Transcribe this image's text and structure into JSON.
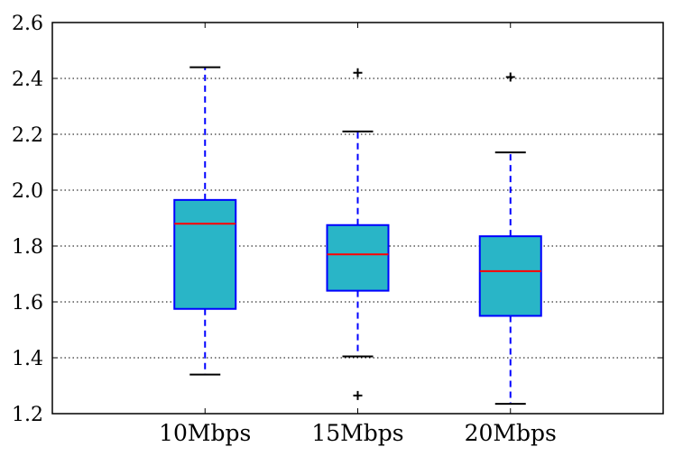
{
  "chart_data": {
    "type": "box",
    "title": "",
    "xlabel": "",
    "ylabel": "",
    "ylim": [
      1.2,
      2.6
    ],
    "grid": "horizontal dotted",
    "y_ticks": [
      "1.2",
      "1.4",
      "1.6",
      "1.8",
      "2.0",
      "2.2",
      "2.4",
      "2.6"
    ],
    "categories": [
      "10Mbps",
      "15Mbps",
      "20Mbps"
    ],
    "boxes": [
      {
        "label": "10Mbps",
        "whisker_low": 1.34,
        "q1": 1.575,
        "median": 1.88,
        "q3": 1.965,
        "whisker_high": 2.44,
        "outliers": []
      },
      {
        "label": "15Mbps",
        "whisker_low": 1.405,
        "q1": 1.64,
        "median": 1.77,
        "q3": 1.875,
        "whisker_high": 2.21,
        "outliers": [
          2.42,
          1.265
        ]
      },
      {
        "label": "20Mbps",
        "whisker_low": 1.235,
        "q1": 1.55,
        "median": 1.71,
        "q3": 1.835,
        "whisker_high": 2.135,
        "outliers": [
          2.405
        ]
      }
    ],
    "colors": {
      "box_fill": "#29b5c7",
      "box_edge": "#0000ff",
      "median": "#ff0000",
      "whisker": "#0000ff",
      "cap": "#000000",
      "outlier": "#000000",
      "grid": "#000000",
      "axes": "#000000"
    }
  }
}
